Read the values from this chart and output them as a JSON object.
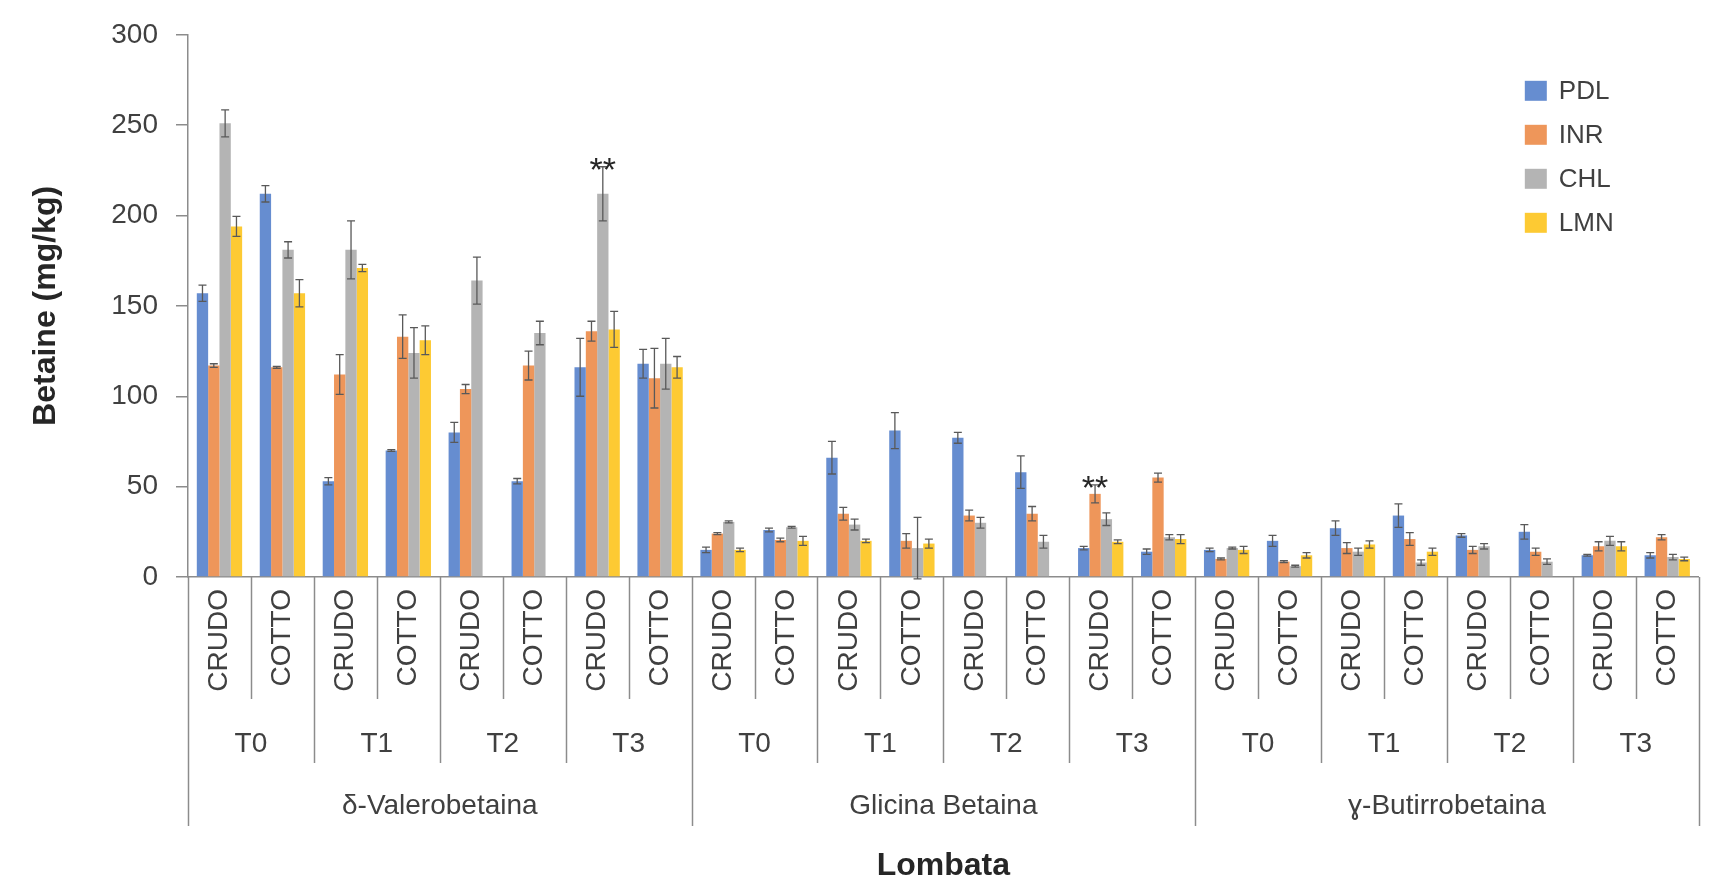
{
  "chart_data": {
    "type": "bar",
    "xlabel": "Lombata",
    "ylabel": "Betaine (mg/kg)",
    "categories": [
      "CRUDO",
      "COTTO",
      "CRUDO",
      "COTTO",
      "CRUDO",
      "COTTO",
      "CRUDO",
      "COTTO",
      "CRUDO",
      "COTTO",
      "CRUDO",
      "COTTO",
      "CRUDO",
      "COTTO",
      "CRUDO",
      "COTTO",
      "CRUDO",
      "COTTO",
      "CRUDO",
      "COTTO",
      "CRUDO",
      "COTTO",
      "CRUDO",
      "COTTO"
    ],
    "annotations": [
      "T0",
      "T1",
      "T2",
      "T3",
      "T0",
      "T1",
      "T2",
      "T3",
      "T0",
      "T1",
      "T2",
      "T3",
      "δ-Valerobetaina",
      "Glicina Betaina",
      "ɣ-Butirrobetaina"
    ],
    "series": [
      {
        "name": "PDL",
        "color": "#668dd0",
        "values": [
          157,
          212,
          53,
          70,
          80,
          53,
          116,
          118,
          15,
          26,
          66,
          81,
          77,
          58,
          16,
          14,
          15,
          20,
          27,
          34,
          23,
          25,
          12,
          12
        ],
        "errors": [
          4.5,
          4.5,
          2,
          0.5,
          5.5,
          1.5,
          16,
          8,
          1.5,
          1,
          9,
          10,
          3,
          9,
          1,
          1.5,
          1,
          3,
          4,
          6.5,
          1,
          4,
          0.5,
          1.5
        ]
      },
      {
        "name": "INR",
        "color": "#ee965a",
        "values": [
          117,
          116,
          112,
          133,
          104,
          117,
          136,
          110,
          24,
          20.5,
          35,
          20,
          34,
          35,
          46,
          55,
          10,
          8.5,
          16,
          21,
          15,
          14,
          17,
          22
        ],
        "errors": [
          1,
          0.5,
          11,
          12,
          2.5,
          8,
          5.5,
          16.5,
          0.5,
          1,
          3.5,
          4,
          3,
          4,
          5,
          2.5,
          0.5,
          0.5,
          3,
          3.5,
          2,
          2,
          2.5,
          1.5
        ],
        "value_labels": [
          null,
          null,
          null,
          null,
          null,
          null,
          null,
          null,
          null,
          null,
          null,
          null,
          null,
          null,
          "**",
          null,
          null,
          null,
          null,
          null,
          null,
          null,
          null,
          null
        ]
      },
      {
        "name": "CHL",
        "color": "#b4b4b4",
        "values": [
          251,
          181,
          181,
          124,
          164,
          135,
          212,
          118,
          30.5,
          27.5,
          29,
          16,
          30,
          19.5,
          32,
          22,
          16,
          6,
          14,
          8,
          17,
          8.5,
          20,
          11
        ],
        "errors": [
          7.5,
          4.5,
          16,
          14,
          13,
          6.5,
          15,
          14,
          0.5,
          0.5,
          3,
          17,
          3,
          3.5,
          3.5,
          1.5,
          0.5,
          0.5,
          2,
          1.5,
          1.5,
          1.5,
          2.5,
          1.5
        ],
        "value_labels": [
          null,
          null,
          null,
          null,
          null,
          null,
          "**",
          null,
          null,
          null,
          null,
          null,
          null,
          null,
          null,
          null,
          null,
          null,
          null,
          null,
          null,
          null,
          null,
          null
        ]
      },
      {
        "name": "LMN",
        "color": "#fdca33",
        "values": [
          194,
          157,
          171,
          131,
          null,
          null,
          137,
          116,
          15,
          20,
          20,
          18.5,
          null,
          null,
          19.5,
          21,
          15,
          12,
          18,
          14,
          null,
          null,
          17,
          10
        ],
        "errors": [
          5.5,
          7.5,
          2,
          8,
          null,
          null,
          10,
          6,
          1,
          2.5,
          1,
          2.5,
          null,
          null,
          1,
          2.5,
          2,
          1.5,
          2,
          2,
          null,
          null,
          2.5,
          1
        ]
      }
    ],
    "ylim": [
      0,
      300
    ],
    "yticks": [
      0,
      50,
      100,
      150,
      200,
      250,
      300
    ],
    "legend": "top right"
  }
}
